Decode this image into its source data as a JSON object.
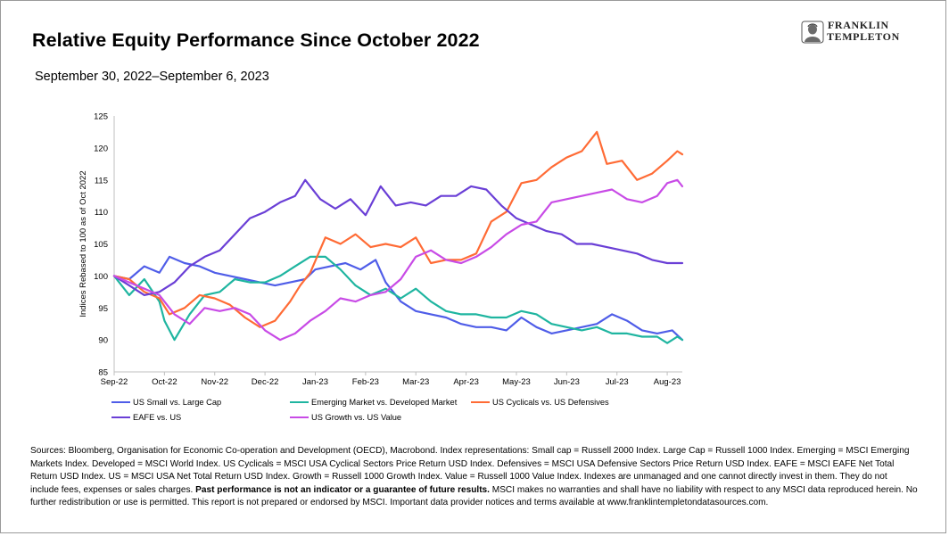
{
  "header": {
    "title": "Relative Equity Performance Since October 2022",
    "subtitle": "September 30, 2022–September 6, 2023",
    "logo_line1": "FRANKLIN",
    "logo_line2": "TEMPLETON"
  },
  "chart_data": {
    "type": "line",
    "title": "Relative Equity Performance Since October 2022",
    "subtitle": "September 30, 2022–September 6, 2023",
    "xlabel": "",
    "ylabel": "Indices Rebased to 100 as of Oct 2022",
    "ylim": [
      85,
      125
    ],
    "yticks": [
      85,
      90,
      95,
      100,
      105,
      110,
      115,
      120,
      125
    ],
    "xlim": [
      0,
      11.3
    ],
    "xticks": [
      "Sep-22",
      "Oct-22",
      "Nov-22",
      "Dec-22",
      "Jan-23",
      "Feb-23",
      "Mar-23",
      "Apr-23",
      "May-23",
      "Jun-23",
      "Jul-23",
      "Aug-23"
    ],
    "grid": false,
    "legend_position": "bottom",
    "series": [
      {
        "name": "US Small vs. Large Cap",
        "color": "#4F5DE8",
        "x": [
          0,
          0.3,
          0.6,
          0.9,
          1.1,
          1.4,
          1.7,
          2.0,
          2.3,
          2.6,
          2.9,
          3.2,
          3.5,
          3.8,
          4.0,
          4.3,
          4.6,
          4.9,
          5.2,
          5.4,
          5.7,
          6.0,
          6.3,
          6.6,
          6.9,
          7.2,
          7.5,
          7.8,
          8.1,
          8.4,
          8.7,
          9.0,
          9.3,
          9.6,
          9.9,
          10.2,
          10.5,
          10.8,
          11.1,
          11.3
        ],
        "values": [
          100,
          99.5,
          101.5,
          100.5,
          103,
          102,
          101.5,
          100.5,
          100,
          99.5,
          99,
          98.5,
          99,
          99.5,
          101,
          101.5,
          102,
          101,
          102.5,
          99,
          96,
          94.5,
          94,
          93.5,
          92.5,
          92,
          92,
          91.5,
          93.5,
          92,
          91,
          91.5,
          92,
          92.5,
          94,
          93,
          91.5,
          91,
          91.5,
          90
        ]
      },
      {
        "name": "Emerging Market vs. Developed Market",
        "color": "#1FB5A0",
        "x": [
          0,
          0.3,
          0.6,
          0.9,
          1.0,
          1.2,
          1.5,
          1.8,
          2.1,
          2.4,
          2.7,
          3.0,
          3.3,
          3.6,
          3.9,
          4.2,
          4.5,
          4.8,
          5.1,
          5.4,
          5.7,
          6.0,
          6.3,
          6.6,
          6.9,
          7.2,
          7.5,
          7.8,
          8.1,
          8.4,
          8.7,
          9.0,
          9.3,
          9.6,
          9.9,
          10.2,
          10.5,
          10.8,
          11.0,
          11.2,
          11.3
        ],
        "values": [
          100,
          97,
          99.5,
          96,
          93,
          90,
          94,
          97,
          97.5,
          99.5,
          99,
          99,
          100,
          101.5,
          103,
          103,
          101,
          98.5,
          97,
          98,
          96.5,
          98,
          96,
          94.5,
          94,
          94,
          93.5,
          93.5,
          94.5,
          94,
          92.5,
          92,
          91.5,
          92,
          91,
          91,
          90.5,
          90.5,
          89.5,
          90.5,
          90
        ]
      },
      {
        "name": "US Cyclicals vs. US Defensives",
        "color": "#FF6B35",
        "x": [
          0,
          0.3,
          0.6,
          0.9,
          1.1,
          1.4,
          1.7,
          2.0,
          2.3,
          2.6,
          2.9,
          3.2,
          3.5,
          3.7,
          3.9,
          4.2,
          4.5,
          4.8,
          5.1,
          5.4,
          5.7,
          6.0,
          6.3,
          6.6,
          6.9,
          7.2,
          7.5,
          7.8,
          8.1,
          8.4,
          8.7,
          9.0,
          9.3,
          9.6,
          9.8,
          10.1,
          10.4,
          10.7,
          11.0,
          11.2,
          11.3
        ],
        "values": [
          100,
          99.5,
          97.5,
          96.5,
          94,
          95,
          97,
          96.5,
          95.5,
          93.5,
          92,
          93,
          96,
          98.5,
          100.5,
          106,
          105,
          106.5,
          104.5,
          105,
          104.5,
          106,
          102,
          102.5,
          102.5,
          103.5,
          108.5,
          110,
          114.5,
          115,
          117,
          118.5,
          119.5,
          122.5,
          117.5,
          118,
          115,
          116,
          118,
          119.5,
          119
        ]
      },
      {
        "name": "EAFE vs. US",
        "color": "#6A3FD6",
        "x": [
          0,
          0.3,
          0.6,
          0.9,
          1.2,
          1.5,
          1.8,
          2.1,
          2.4,
          2.7,
          3.0,
          3.3,
          3.6,
          3.8,
          4.1,
          4.4,
          4.7,
          5.0,
          5.3,
          5.6,
          5.9,
          6.2,
          6.5,
          6.8,
          7.1,
          7.4,
          7.7,
          8.0,
          8.3,
          8.6,
          8.9,
          9.2,
          9.5,
          9.8,
          10.1,
          10.4,
          10.7,
          11.0,
          11.2,
          11.3
        ],
        "values": [
          100,
          98.5,
          97,
          97.5,
          99,
          101.5,
          103,
          104,
          106.5,
          109,
          110,
          111.5,
          112.5,
          115,
          112,
          110.5,
          112,
          109.5,
          114,
          111,
          111.5,
          111,
          112.5,
          112.5,
          114,
          113.5,
          111,
          109,
          108,
          107,
          106.5,
          105,
          105,
          104.5,
          104,
          103.5,
          102.5,
          102,
          102,
          102
        ]
      },
      {
        "name": "US Growth vs. US Value",
        "color": "#C84BE6",
        "x": [
          0,
          0.3,
          0.6,
          0.9,
          1.2,
          1.5,
          1.8,
          2.1,
          2.4,
          2.7,
          3.0,
          3.3,
          3.6,
          3.9,
          4.2,
          4.5,
          4.8,
          5.1,
          5.4,
          5.7,
          6.0,
          6.3,
          6.6,
          6.9,
          7.2,
          7.5,
          7.8,
          8.1,
          8.4,
          8.7,
          9.0,
          9.3,
          9.6,
          9.9,
          10.2,
          10.5,
          10.8,
          11.0,
          11.2,
          11.3
        ],
        "values": [
          100,
          99,
          98,
          97,
          94,
          92.5,
          95,
          94.5,
          95,
          94,
          91.5,
          90,
          91,
          93,
          94.5,
          96.5,
          96,
          97,
          97.5,
          99.5,
          103,
          104,
          102.5,
          102,
          103,
          104.5,
          106.5,
          108,
          108.5,
          111.5,
          112,
          112.5,
          113,
          113.5,
          112,
          111.5,
          112.5,
          114.5,
          115,
          114
        ]
      }
    ]
  },
  "footnote": {
    "part1": "Sources: Bloomberg, Organisation for Economic Co-operation and Development (OECD), Macrobond. Index representations: Small cap = Russell 2000 Index. Large Cap = Russell 1000 Index. Emerging = MSCI Emerging Markets Index. Developed = MSCI World Index. US Cyclicals = MSCI USA Cyclical Sectors Price Return USD Index. Defensives = MSCI USA Defensive Sectors Price Return USD Index. EAFE = MSCI EAFE Net Total Return USD Index. US = MSCI USA Net Total Return USD Index. Growth = Russell 1000 Growth Index. Value = Russell 1000 Value Index. Indexes are unmanaged and one cannot directly invest in them. They do not include fees, expenses or sales charges. ",
    "bold": "Past performance is not an indicator or a guarantee of future results.",
    "part2": " MSCI makes no warranties and shall have no liability with respect to any MSCI data reproduced herein. No further redistribution or use is permitted. This report is not prepared or endorsed by MSCI. Important data provider notices and terms available at www.franklintempletondatasources.com."
  }
}
